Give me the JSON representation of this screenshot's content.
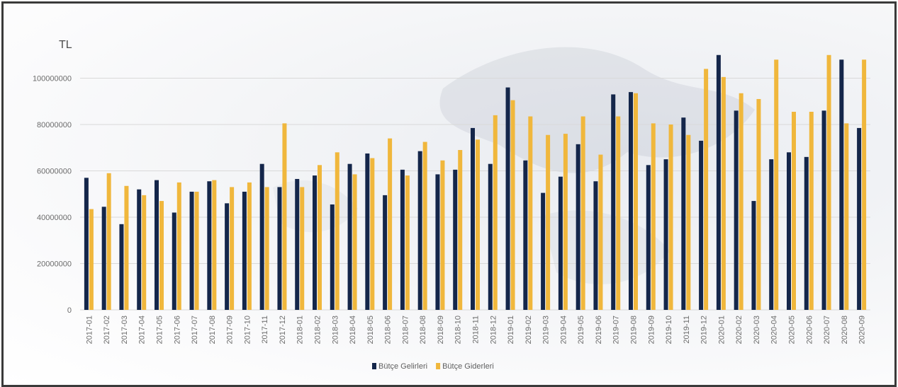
{
  "chart_data": {
    "type": "bar",
    "ylabel": "TL",
    "ylim": [
      0,
      120000000
    ],
    "yticks": [
      0,
      20000000,
      40000000,
      60000000,
      80000000,
      100000000
    ],
    "grid": true,
    "legend_position": "bottom",
    "categories": [
      "2017-01",
      "2017-02",
      "2017-03",
      "2017-04",
      "2017-05",
      "2017-06",
      "2017-07",
      "2017-08",
      "2017-09",
      "2017-10",
      "2017-11",
      "2017-12",
      "2018-01",
      "2018-02",
      "2018-03",
      "2018-04",
      "2018-05",
      "2018-06",
      "2018-07",
      "2018-08",
      "2018-09",
      "2018-10",
      "2018-11",
      "2018-12",
      "2019-01",
      "2019-02",
      "2019-03",
      "2019-04",
      "2019-05",
      "2019-06",
      "2019-07",
      "2019-08",
      "2019-09",
      "2019-10",
      "2019-11",
      "2019-12",
      "2020-01",
      "2020-02",
      "2020-03",
      "2020-04",
      "2020-05",
      "2020-06",
      "2020-07",
      "2020-08",
      "2020-09"
    ],
    "series": [
      {
        "name": "Bütçe Gelirleri",
        "color": "#14264a",
        "values": [
          57000000,
          44500000,
          37000000,
          52000000,
          56000000,
          42000000,
          51000000,
          55500000,
          46000000,
          51000000,
          63000000,
          53000000,
          56500000,
          58000000,
          45500000,
          63000000,
          67500000,
          49500000,
          60500000,
          68500000,
          58500000,
          60500000,
          78500000,
          63000000,
          96000000,
          64500000,
          50500000,
          57500000,
          71500000,
          55500000,
          93000000,
          94000000,
          62500000,
          65000000,
          83000000,
          73000000,
          110000000,
          86000000,
          47000000,
          65000000,
          68000000,
          66000000,
          86000000,
          108000000,
          78500000
        ]
      },
      {
        "name": "Bütçe Giderleri",
        "color": "#f0b73c",
        "values": [
          43500000,
          59000000,
          53500000,
          49500000,
          47000000,
          55000000,
          51000000,
          56000000,
          53000000,
          55000000,
          53000000,
          80500000,
          53000000,
          62500000,
          68000000,
          58500000,
          65500000,
          74000000,
          58000000,
          72500000,
          64500000,
          69000000,
          73500000,
          84000000,
          90500000,
          83500000,
          75500000,
          76000000,
          83500000,
          67000000,
          83500000,
          93500000,
          80500000,
          80000000,
          75500000,
          104000000,
          100500000,
          93500000,
          91000000,
          108000000,
          85500000,
          85500000,
          110000000,
          80500000,
          108000000
        ]
      }
    ]
  }
}
